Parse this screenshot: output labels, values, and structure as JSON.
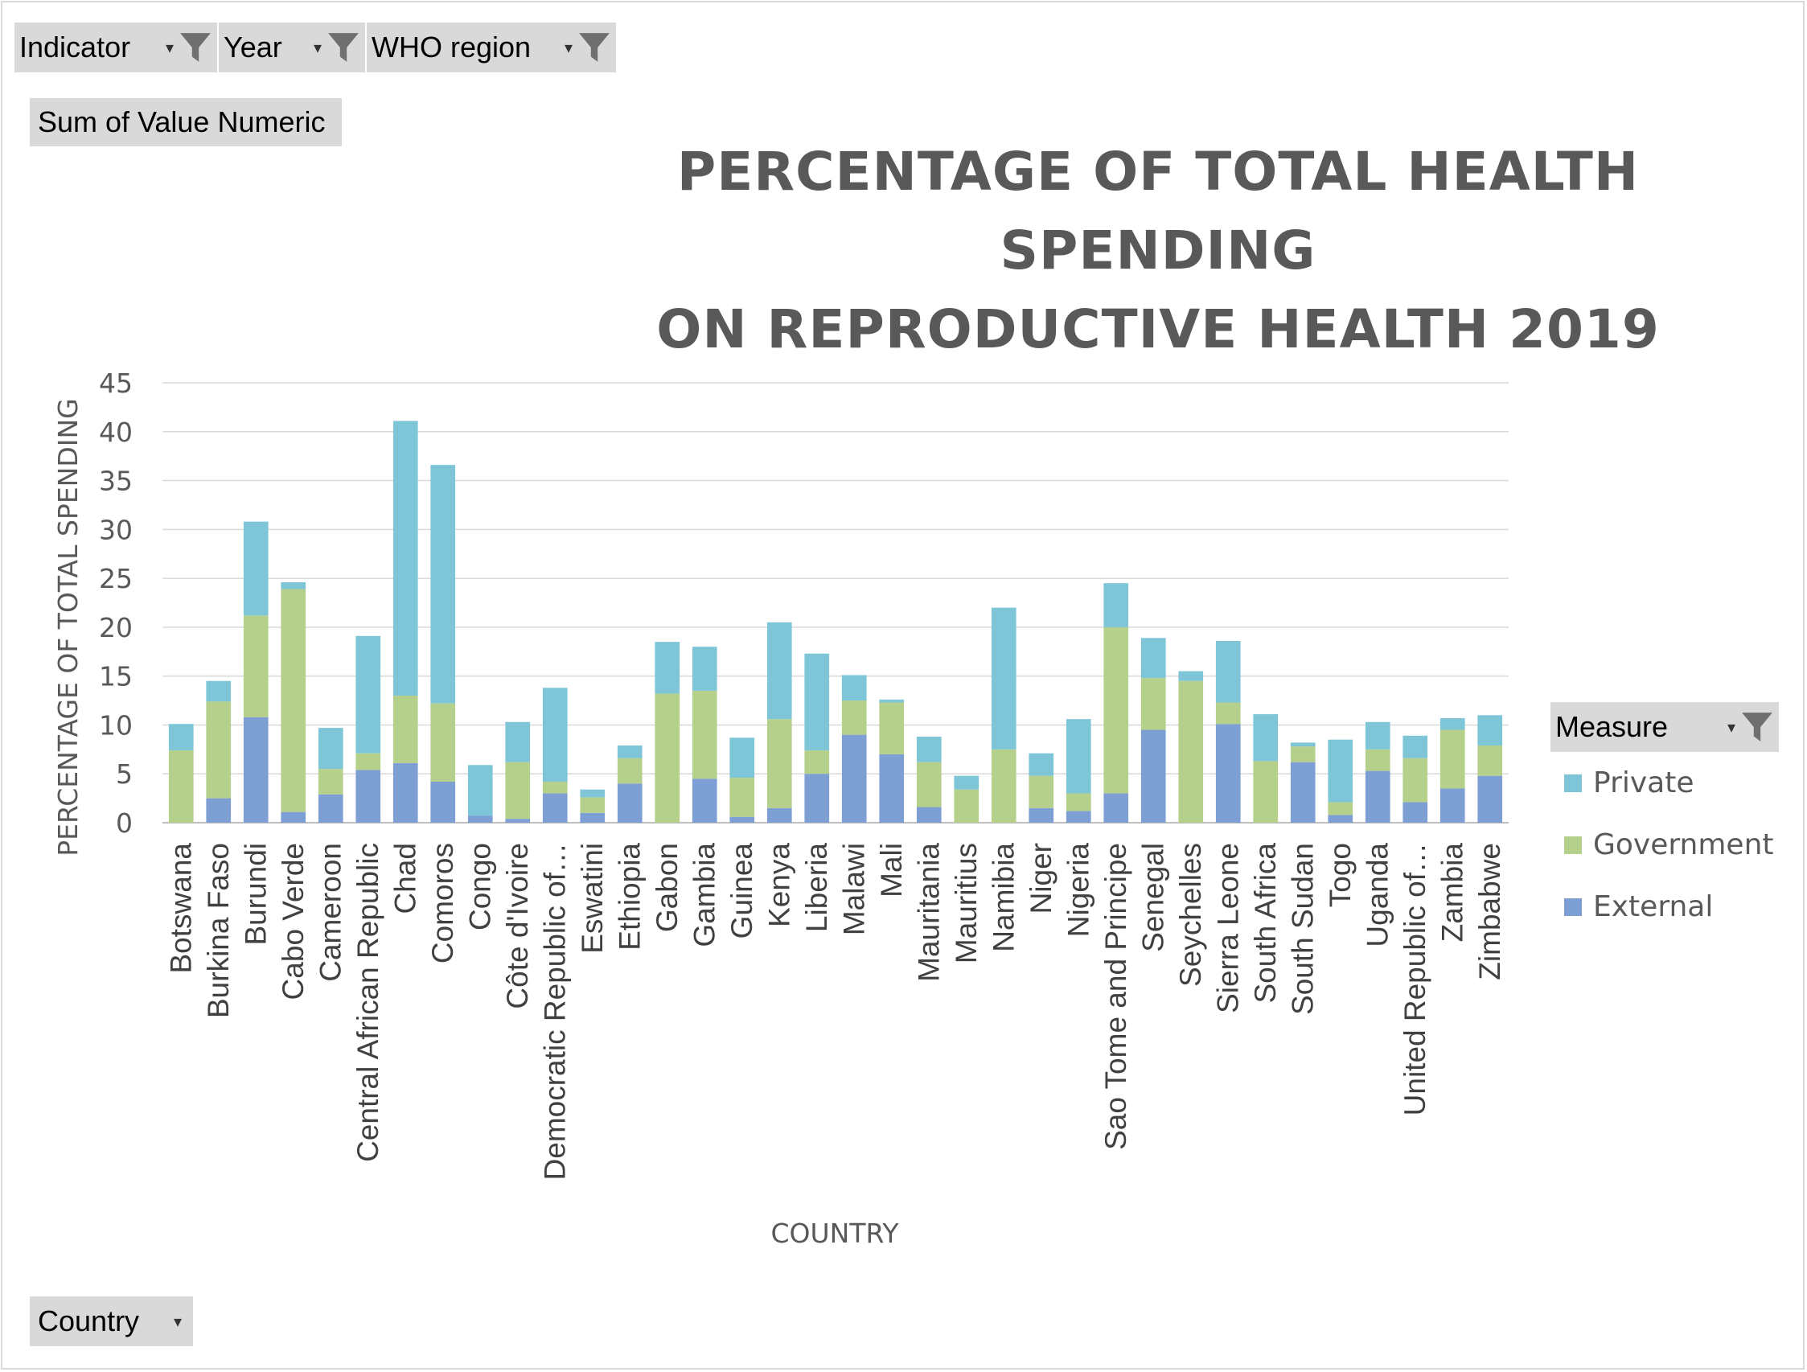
{
  "filters": {
    "indicator_label": "Indicator",
    "year_label": "Year",
    "region_label": "WHO region"
  },
  "values_field_label": "Sum of Value Numeric",
  "measure_filter_label": "Measure",
  "row_field_label": "Country",
  "colors": {
    "private": "#7EC5D8",
    "government": "#B5D08A",
    "external": "#7E9FD3",
    "gridline": "#d9d9d9",
    "text": "#595959",
    "button": "#d9d9d9"
  },
  "chart_data": {
    "type": "bar",
    "stacked": true,
    "title": "PERCENTAGE OF TOTAL HEALTH SPENDING ON REPRODUCTIVE HEALTH 2019",
    "title_lines": [
      "PERCENTAGE OF TOTAL HEALTH SPENDING",
      "ON REPRODUCTIVE HEALTH 2019"
    ],
    "xlabel": "COUNTRY",
    "ylabel": "PERCENTAGE OF TOTAL SPENDING",
    "ylim": [
      0,
      45
    ],
    "yticks": [
      0,
      5,
      10,
      15,
      20,
      25,
      30,
      35,
      40,
      45
    ],
    "grid": true,
    "legend_position": "right",
    "categories": [
      "Botswana",
      "Burkina Faso",
      "Burundi",
      "Cabo Verde",
      "Cameroon",
      "Central African Republic",
      "Chad",
      "Comoros",
      "Congo",
      "Côte d'Ivoire",
      "Democratic Republic of…",
      "Eswatini",
      "Ethiopia",
      "Gabon",
      "Gambia",
      "Guinea",
      "Kenya",
      "Liberia",
      "Malawi",
      "Mali",
      "Mauritania",
      "Mauritius",
      "Namibia",
      "Niger",
      "Nigeria",
      "Sao Tome and Principe",
      "Senegal",
      "Seychelles",
      "Sierra Leone",
      "South Africa",
      "South Sudan",
      "Togo",
      "Uganda",
      "United Republic of…",
      "Zambia",
      "Zimbabwe"
    ],
    "series": [
      {
        "name": "External",
        "key": "external",
        "values": [
          0,
          2.5,
          10.8,
          1.1,
          2.9,
          5.4,
          6.1,
          4.2,
          0.7,
          0.4,
          3,
          1,
          4,
          0,
          4.5,
          0.6,
          1.5,
          5,
          9,
          7,
          1.6,
          0,
          0,
          1.5,
          1.2,
          3,
          9.5,
          0,
          10.1,
          0,
          6.2,
          0.8,
          5.3,
          2.1,
          3.5,
          4.8
        ]
      },
      {
        "name": "Government",
        "key": "government",
        "values": [
          7.4,
          9.9,
          10.4,
          22.8,
          2.6,
          1.7,
          6.9,
          8,
          0,
          5.8,
          1.2,
          1.6,
          2.6,
          13.2,
          9,
          4,
          9.1,
          2.4,
          3.5,
          5.3,
          4.6,
          3.4,
          7.5,
          3.3,
          1.8,
          17,
          5.3,
          14.5,
          2.2,
          6.3,
          1.6,
          1.3,
          2.2,
          4.5,
          6,
          3.1
        ]
      },
      {
        "name": "Private",
        "key": "private",
        "values": [
          2.7,
          2.1,
          9.6,
          0.7,
          4.2,
          12,
          28.1,
          24.4,
          5.2,
          4.1,
          9.6,
          0.8,
          1.3,
          5.3,
          4.5,
          4.1,
          9.9,
          9.9,
          2.6,
          0.3,
          2.6,
          1.4,
          14.5,
          2.3,
          7.6,
          4.5,
          4.1,
          1,
          6.3,
          4.8,
          0.4,
          6.4,
          2.8,
          2.3,
          1.2,
          3.1
        ]
      }
    ],
    "legend_order": [
      "Private",
      "Government",
      "External"
    ]
  }
}
